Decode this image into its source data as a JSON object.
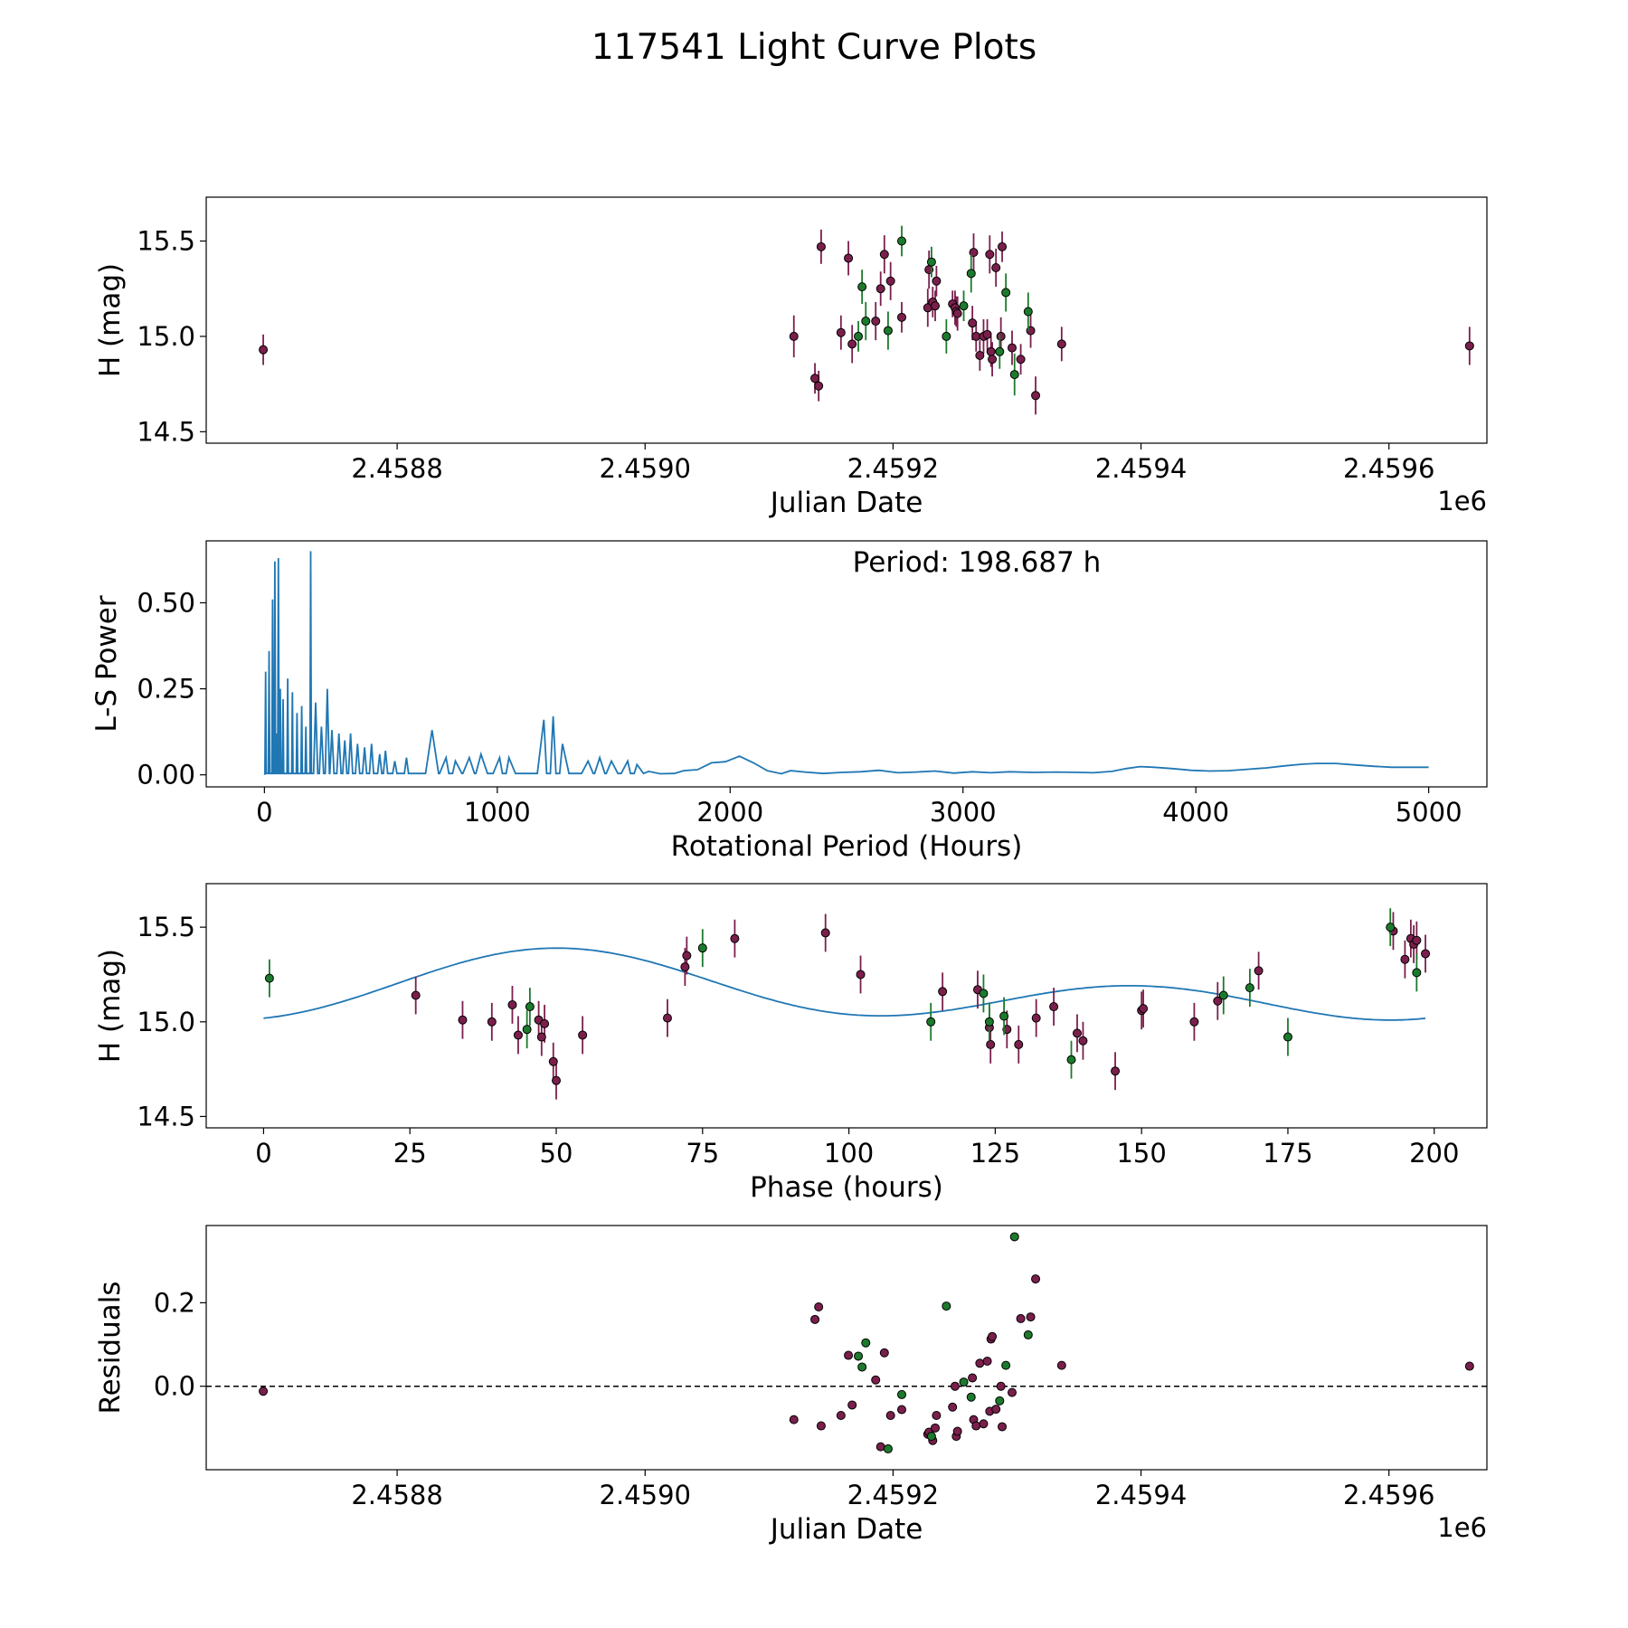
{
  "figure": {
    "title": "117541 Light Curve Plots"
  },
  "colors": {
    "ztf_r": "#7a1f4c",
    "ztf_g": "#1c7a2c",
    "model": "#1f77b4",
    "frame": "#000000"
  },
  "chart_data": [
    {
      "id": "light_curve",
      "type": "scatter",
      "xlabel": "Julian Date",
      "ylabel": "H (mag)",
      "offset_label": "1e6",
      "xlim": [
        2458646,
        2459679
      ],
      "ylim": [
        14.44,
        15.73
      ],
      "xticks": [
        2458800,
        2459000,
        2459200,
        2459400,
        2459600
      ],
      "xtick_labels": [
        "2.4588",
        "2.4590",
        "2.4592",
        "2.4594",
        "2.4596"
      ],
      "yticks": [
        14.5,
        15.0,
        15.5
      ],
      "ytick_labels": [
        "14.5",
        "15.0",
        "15.5"
      ],
      "series": [
        {
          "name": "r",
          "color": "#7a1f4c",
          "x": [
            2458692,
            2459120,
            2459137,
            2459140,
            2459142,
            2459158,
            2459164,
            2459167,
            2459186,
            2459190,
            2459193,
            2459198,
            2459207,
            2459228,
            2459229,
            2459232,
            2459234,
            2459235,
            2459248,
            2459250,
            2459251,
            2459252,
            2459264,
            2459265,
            2459267,
            2459270,
            2459273,
            2459276,
            2459278,
            2459279,
            2459280,
            2459283,
            2459287,
            2459288,
            2459296,
            2459303,
            2459311,
            2459315,
            2459336,
            2459665
          ],
          "y": [
            14.93,
            15.0,
            14.78,
            14.74,
            15.47,
            15.02,
            15.41,
            14.96,
            15.08,
            15.25,
            15.43,
            15.29,
            15.1,
            15.15,
            15.35,
            15.18,
            15.16,
            15.29,
            15.17,
            15.15,
            15.13,
            15.12,
            15.07,
            15.44,
            15.0,
            14.9,
            15.0,
            15.01,
            15.43,
            14.92,
            14.88,
            15.36,
            15.0,
            15.47,
            14.94,
            14.88,
            15.03,
            14.69,
            14.96,
            14.95
          ],
          "err": [
            0.08,
            0.11,
            0.08,
            0.08,
            0.09,
            0.09,
            0.09,
            0.1,
            0.1,
            0.09,
            0.1,
            0.1,
            0.08,
            0.1,
            0.1,
            0.08,
            0.08,
            0.08,
            0.07,
            0.09,
            0.08,
            0.09,
            0.09,
            0.1,
            0.08,
            0.08,
            0.09,
            0.08,
            0.1,
            0.08,
            0.09,
            0.1,
            0.1,
            0.08,
            0.09,
            0.08,
            0.09,
            0.1,
            0.09,
            0.1
          ]
        },
        {
          "name": "g",
          "color": "#1c7a2c",
          "x": [
            2459172,
            2459175,
            2459178,
            2459196,
            2459207,
            2459231,
            2459243,
            2459257,
            2459263,
            2459286,
            2459291,
            2459298,
            2459309
          ],
          "y": [
            15.0,
            15.26,
            15.08,
            15.03,
            15.5,
            15.39,
            15.0,
            15.16,
            15.33,
            14.92,
            15.23,
            14.8,
            15.13
          ],
          "err": [
            0.08,
            0.09,
            0.1,
            0.1,
            0.08,
            0.08,
            0.09,
            0.08,
            0.1,
            0.09,
            0.1,
            0.11,
            0.1
          ]
        }
      ]
    },
    {
      "id": "periodogram",
      "type": "line",
      "xlabel": "Rotational Period (Hours)",
      "ylabel": "L-S Power",
      "annotation": "Period: 198.687 h",
      "xlim": [
        -250,
        5250
      ],
      "ylim": [
        -0.035,
        0.68
      ],
      "xticks": [
        0,
        1000,
        2000,
        3000,
        4000,
        5000
      ],
      "xtick_labels": [
        "0",
        "1000",
        "2000",
        "3000",
        "4000",
        "5000"
      ],
      "yticks": [
        0,
        0.25,
        0.5
      ],
      "ytick_labels": [
        "0.00",
        "0.25",
        "0.50"
      ],
      "peaks": {
        "x": [
          5,
          20,
          35,
          45,
          52,
          60,
          68,
          80,
          100,
          120,
          140,
          160,
          178,
          198.687,
          220,
          245,
          270,
          290,
          320,
          345,
          370,
          400,
          430,
          460,
          495,
          520,
          560,
          610,
          720,
          780,
          820,
          880,
          930,
          1010,
          1050,
          1200,
          1240,
          1280,
          1390,
          1440,
          1490,
          1560,
          1600
        ],
        "y": [
          0.3,
          0.36,
          0.51,
          0.62,
          0.12,
          0.63,
          0.25,
          0.22,
          0.28,
          0.24,
          0.18,
          0.2,
          0.14,
          0.65,
          0.21,
          0.14,
          0.25,
          0.13,
          0.12,
          0.1,
          0.12,
          0.09,
          0.08,
          0.09,
          0.06,
          0.07,
          0.04,
          0.05,
          0.13,
          0.05,
          0.04,
          0.05,
          0.06,
          0.05,
          0.05,
          0.16,
          0.17,
          0.09,
          0.04,
          0.05,
          0.04,
          0.04,
          0.03
        ]
      },
      "smooth": {
        "x": [
          1650,
          1700,
          1760,
          1800,
          1860,
          1920,
          1980,
          2040,
          2100,
          2160,
          2220,
          2260,
          2320,
          2400,
          2480,
          2560,
          2640,
          2720,
          2800,
          2880,
          2960,
          3040,
          3120,
          3200,
          3300,
          3400,
          3500,
          3560,
          3640,
          3700,
          3760,
          3820,
          3900,
          3980,
          4060,
          4140,
          4220,
          4300,
          4380,
          4460,
          4520,
          4600,
          4680,
          4760,
          4840,
          4920,
          5000
        ],
        "y": [
          0.01,
          0.003,
          0.004,
          0.012,
          0.015,
          0.035,
          0.038,
          0.054,
          0.035,
          0.012,
          0.003,
          0.012,
          0.008,
          0.004,
          0.007,
          0.009,
          0.013,
          0.006,
          0.008,
          0.011,
          0.005,
          0.009,
          0.006,
          0.009,
          0.007,
          0.008,
          0.007,
          0.006,
          0.01,
          0.018,
          0.024,
          0.022,
          0.018,
          0.013,
          0.011,
          0.012,
          0.016,
          0.02,
          0.026,
          0.031,
          0.033,
          0.033,
          0.029,
          0.025,
          0.022,
          0.022,
          0.022
        ]
      }
    },
    {
      "id": "phase_curve",
      "type": "scatter",
      "xlabel": "Phase (hours)",
      "ylabel": "H (mag)",
      "xlim": [
        -9.8,
        209
      ],
      "ylim": [
        14.44,
        15.73
      ],
      "xticks": [
        0,
        25,
        50,
        75,
        100,
        125,
        150,
        175,
        200
      ],
      "xtick_labels": [
        "0",
        "25",
        "50",
        "75",
        "100",
        "125",
        "150",
        "175",
        "200"
      ],
      "yticks": [
        14.5,
        15.0,
        15.5
      ],
      "ytick_labels": [
        "14.5",
        "15.0",
        "15.5"
      ],
      "model": {
        "period_hours": 198.687,
        "mean": 15.16,
        "amp1": 0.1,
        "phi1": 1.68,
        "amp2": 0.13,
        "phi2": 3.13
      },
      "series": [
        {
          "name": "r",
          "color": "#7a1f4c",
          "x": [
            26,
            34,
            39,
            42.5,
            43.5,
            47,
            47.5,
            48,
            49.5,
            50,
            54.5,
            69,
            72,
            72.3,
            80.5,
            96,
            102,
            116,
            122,
            124,
            124.2,
            127,
            129,
            132,
            135,
            139,
            140,
            145.5,
            150,
            150.3,
            159,
            163,
            170,
            193,
            195,
            196,
            196.5,
            197,
            198.5
          ],
          "y": [
            15.14,
            15.01,
            15.0,
            15.09,
            14.93,
            15.01,
            14.92,
            14.99,
            14.79,
            14.69,
            14.93,
            15.02,
            15.29,
            15.35,
            15.44,
            15.47,
            15.25,
            15.16,
            15.17,
            14.97,
            14.88,
            14.96,
            14.88,
            15.02,
            15.08,
            14.94,
            14.9,
            14.74,
            15.06,
            15.07,
            15.0,
            15.11,
            15.27,
            15.48,
            15.33,
            15.44,
            15.41,
            15.43,
            15.36
          ]
        },
        {
          "name": "g",
          "color": "#1c7a2c",
          "x": [
            1,
            45,
            45.5,
            75,
            114,
            123,
            124,
            126.5,
            138,
            164,
            168.5,
            175,
            192.5,
            197
          ],
          "y": [
            15.23,
            14.96,
            15.08,
            15.39,
            15.0,
            15.15,
            15.0,
            15.03,
            14.8,
            15.14,
            15.18,
            14.92,
            15.5,
            15.26
          ]
        }
      ],
      "err": 0.1
    },
    {
      "id": "residuals",
      "type": "scatter",
      "xlabel": "Julian Date",
      "ylabel": "Residuals",
      "offset_label": "1e6",
      "xlim": [
        2458646,
        2459679
      ],
      "ylim": [
        -0.2,
        0.385
      ],
      "xticks": [
        2458800,
        2459000,
        2459200,
        2459400,
        2459600
      ],
      "xtick_labels": [
        "2.4588",
        "2.4590",
        "2.4592",
        "2.4594",
        "2.4596"
      ],
      "yticks": [
        0,
        0.2
      ],
      "ytick_labels": [
        "0.0",
        "0.2"
      ],
      "reference_line": 0,
      "series": [
        {
          "name": "r",
          "color": "#7a1f4c",
          "x": [
            2458692,
            2459120,
            2459137,
            2459140,
            2459142,
            2459158,
            2459164,
            2459167,
            2459186,
            2459190,
            2459193,
            2459198,
            2459207,
            2459228,
            2459229,
            2459232,
            2459234,
            2459235,
            2459248,
            2459250,
            2459251,
            2459252,
            2459264,
            2459265,
            2459267,
            2459270,
            2459273,
            2459276,
            2459278,
            2459279,
            2459280,
            2459283,
            2459287,
            2459288,
            2459296,
            2459303,
            2459311,
            2459315,
            2459336,
            2459665
          ],
          "y": [
            -0.012,
            -0.08,
            0.16,
            0.19,
            -0.095,
            -0.07,
            0.074,
            -0.045,
            0.015,
            -0.145,
            0.08,
            -0.07,
            -0.056,
            -0.115,
            -0.11,
            -0.13,
            -0.1,
            -0.07,
            -0.05,
            0.0,
            -0.12,
            -0.108,
            0.02,
            -0.08,
            -0.095,
            0.055,
            -0.09,
            0.06,
            -0.06,
            0.113,
            0.119,
            -0.055,
            0.0,
            -0.097,
            -0.015,
            0.162,
            0.166,
            0.257,
            0.05,
            0.048
          ]
        },
        {
          "name": "g",
          "color": "#1c7a2c",
          "x": [
            2459172,
            2459175,
            2459178,
            2459196,
            2459207,
            2459231,
            2459243,
            2459257,
            2459263,
            2459286,
            2459291,
            2459298,
            2459309
          ],
          "y": [
            0.072,
            0.046,
            0.104,
            -0.15,
            -0.02,
            -0.12,
            0.192,
            0.01,
            -0.026,
            -0.035,
            0.05,
            0.358,
            0.123
          ]
        }
      ]
    }
  ]
}
